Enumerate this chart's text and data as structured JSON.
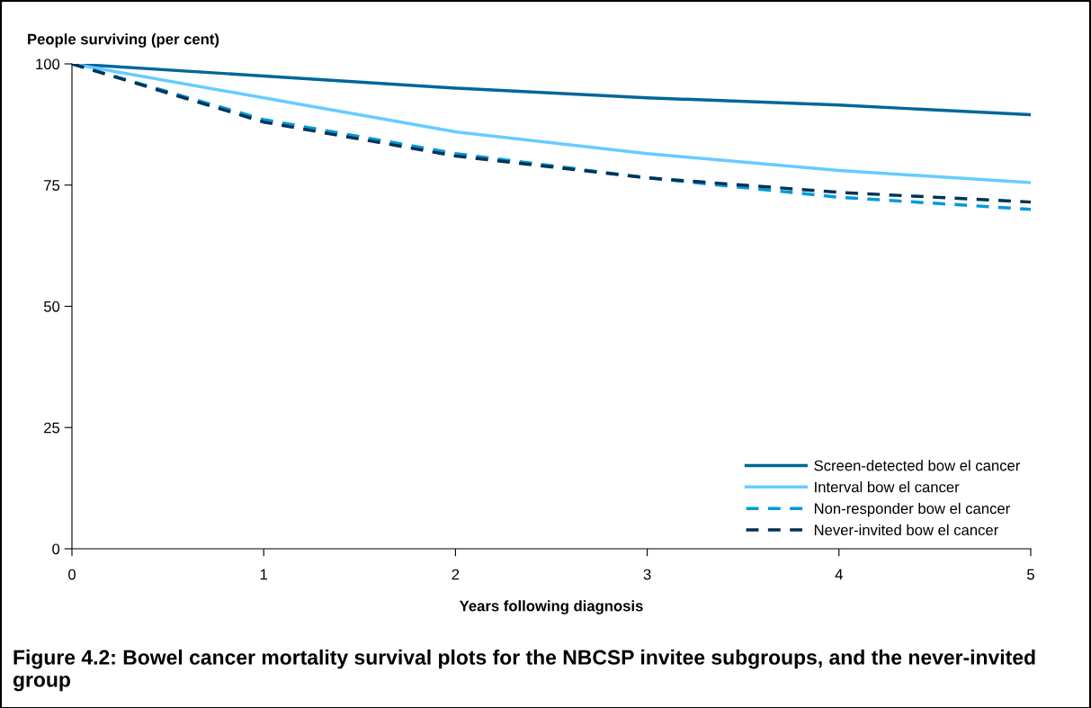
{
  "chart_data": {
    "type": "line",
    "title": "Figure 4.2: Bowel cancer mortality survival plots for the NBCSP invitee subgroups, and the never-invited group",
    "xlabel": "Years following diagnosis",
    "ylabel": "People surviving (per cent)",
    "x": [
      0,
      1,
      2,
      3,
      4,
      5
    ],
    "series": [
      {
        "name": "Screen-detected bow el cancer",
        "color": "#006699",
        "line_style": "solid",
        "values": [
          100,
          97.5,
          95,
          93,
          91.5,
          89.5
        ]
      },
      {
        "name": "Interval bow el cancer",
        "color": "#66ccff",
        "line_style": "solid",
        "values": [
          100,
          93,
          86,
          81.5,
          78,
          75.5
        ]
      },
      {
        "name": "Non-responder bow el cancer",
        "color": "#0099dd",
        "line_style": "dashed",
        "values": [
          100,
          88.5,
          81.5,
          76.5,
          72.5,
          70
        ]
      },
      {
        "name": "Never-invited bow el cancer",
        "color": "#003355",
        "line_style": "dashed",
        "values": [
          100,
          88,
          81,
          76.5,
          73.5,
          71.5
        ]
      }
    ],
    "xlim": [
      0,
      5
    ],
    "xticks": [
      0,
      1,
      2,
      3,
      4,
      5
    ],
    "ylim": [
      0,
      100
    ],
    "yticks": [
      0,
      25,
      50,
      75,
      100
    ],
    "grid": false,
    "legend": "bottom right",
    "marker": "none"
  }
}
